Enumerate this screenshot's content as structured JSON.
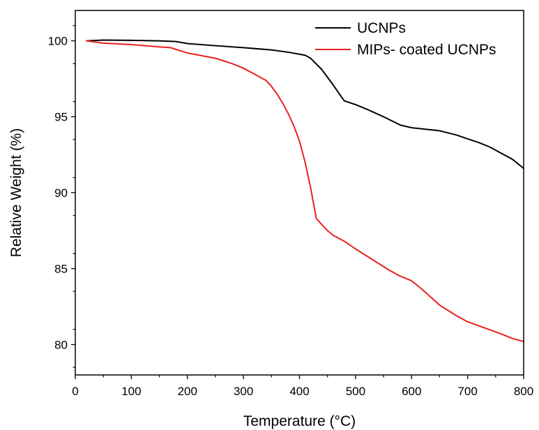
{
  "chart_data": {
    "type": "line",
    "title": "",
    "xlabel": "Temperature (°C)",
    "ylabel": "Relative Weight (%)",
    "xlim": [
      0,
      800
    ],
    "ylim": [
      78,
      102
    ],
    "x_ticks": [
      0,
      100,
      200,
      300,
      400,
      500,
      600,
      700,
      800
    ],
    "y_ticks": [
      80,
      85,
      90,
      95,
      100
    ],
    "grid": false,
    "legend_position": "top-right",
    "series": [
      {
        "name": "UCNPs",
        "color": "#000000",
        "x": [
          20,
          50,
          100,
          150,
          180,
          200,
          250,
          300,
          350,
          380,
          410,
          420,
          440,
          460,
          475,
          480,
          500,
          520,
          550,
          580,
          600,
          620,
          650,
          680,
          700,
          720,
          740,
          760,
          780,
          800
        ],
        "y": [
          100.0,
          100.05,
          100.03,
          100.0,
          99.95,
          99.82,
          99.68,
          99.55,
          99.4,
          99.25,
          99.05,
          98.85,
          98.1,
          97.1,
          96.3,
          96.05,
          95.8,
          95.5,
          95.0,
          94.45,
          94.28,
          94.2,
          94.08,
          93.8,
          93.55,
          93.3,
          93.0,
          92.6,
          92.2,
          91.6
        ]
      },
      {
        "name": "MIPs- coated UCNPs",
        "color": "#e8211c",
        "x": [
          20,
          50,
          100,
          150,
          170,
          200,
          250,
          280,
          300,
          320,
          340,
          350,
          360,
          370,
          380,
          390,
          400,
          410,
          420,
          430,
          440,
          450,
          460,
          480,
          500,
          530,
          560,
          580,
          600,
          620,
          650,
          680,
          700,
          730,
          760,
          780,
          800
        ],
        "y": [
          100.0,
          99.85,
          99.75,
          99.6,
          99.55,
          99.2,
          98.85,
          98.5,
          98.2,
          97.8,
          97.4,
          97.0,
          96.5,
          95.9,
          95.2,
          94.4,
          93.4,
          92.0,
          90.3,
          88.3,
          87.9,
          87.5,
          87.2,
          86.8,
          86.3,
          85.6,
          84.9,
          84.5,
          84.2,
          83.6,
          82.6,
          81.9,
          81.5,
          81.1,
          80.7,
          80.4,
          80.2
        ]
      }
    ]
  }
}
